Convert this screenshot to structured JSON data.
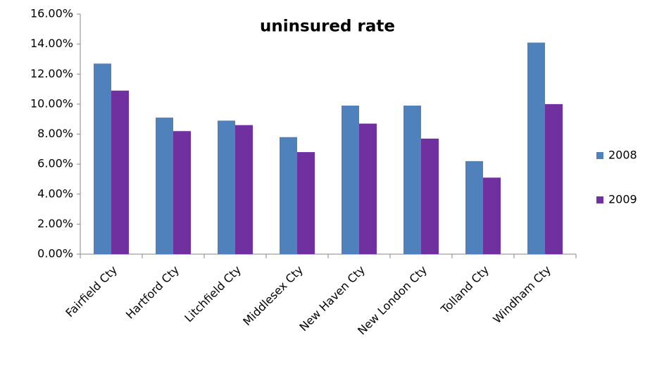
{
  "chart_data": {
    "type": "bar",
    "title": "uninsured rate",
    "categories": [
      "Fairfield Cty",
      "Hartford Cty",
      "Litchfield Cty",
      "Middlesex Cty",
      "New Haven Cty",
      "New London Cty",
      "Tolland Cty",
      "Windham Cty"
    ],
    "series": [
      {
        "name": "2008",
        "color": "#4f81bd",
        "values": [
          12.7,
          9.1,
          8.9,
          7.8,
          9.9,
          9.9,
          6.2,
          14.1
        ]
      },
      {
        "name": "2009",
        "color": "#7030a0",
        "values": [
          10.9,
          8.2,
          8.6,
          6.8,
          8.7,
          7.7,
          5.1,
          10.0
        ]
      }
    ],
    "ylim": [
      0,
      16
    ],
    "yticks": [
      {
        "value": 0,
        "label": "0.00%"
      },
      {
        "value": 2,
        "label": "2.00%"
      },
      {
        "value": 4,
        "label": "4.00%"
      },
      {
        "value": 6,
        "label": "6.00%"
      },
      {
        "value": 8,
        "label": "8.00%"
      },
      {
        "value": 10,
        "label": "10.00%"
      },
      {
        "value": 12,
        "label": "12.00%"
      },
      {
        "value": 14,
        "label": "14.00%"
      },
      {
        "value": 16,
        "label": "16.00%"
      }
    ],
    "grid": false,
    "legend": "right"
  }
}
